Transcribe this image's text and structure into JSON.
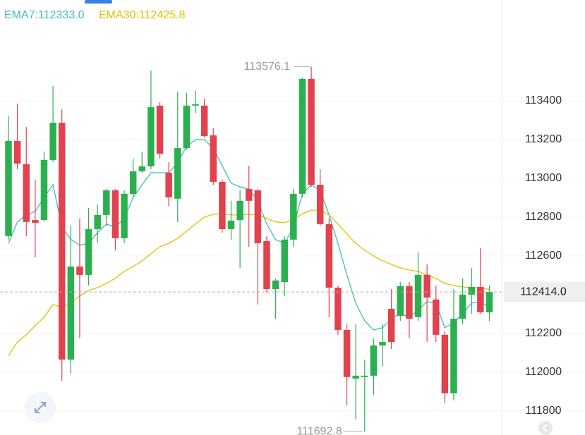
{
  "chart_data": {
    "type": "candlestick",
    "up_color": "#2bb04f",
    "down_color": "#e1424e",
    "ylim": [
      111676,
      113920
    ],
    "yticks": [
      111800,
      112000,
      112200,
      112400,
      112600,
      112800,
      113000,
      113200,
      113400
    ],
    "grid": true,
    "candles": {
      "open": [
        112702,
        113193,
        113073,
        112785,
        112785,
        113095,
        113287,
        112065,
        112545,
        112502,
        112738,
        112811,
        112938,
        112691,
        112920,
        113036,
        113062,
        113375,
        113029,
        112895,
        113156,
        113375,
        113375,
        113222,
        112982,
        112738,
        112785,
        112945,
        112938,
        112676,
        112429,
        112465,
        112684,
        112920,
        113513,
        112967,
        112764,
        112436,
        112218,
        111967,
        111975,
        111982,
        112138,
        112327,
        112291,
        112444,
        112284,
        112502,
        112375,
        112193,
        111891,
        112276,
        112400,
        112440,
        112309
      ],
      "high": [
        113320,
        113385,
        113265,
        112993,
        113138,
        113476,
        113356,
        112756,
        112793,
        112847,
        112865,
        112945,
        112945,
        112938,
        113102,
        113138,
        113556,
        113393,
        113084,
        113447,
        113440,
        113455,
        113411,
        113258,
        112993,
        112884,
        112938,
        113065,
        112945,
        112702,
        112484,
        112702,
        112945,
        113520,
        113576.1,
        113047,
        112793,
        112447,
        112247,
        112247,
        112065,
        112175,
        112247,
        112429,
        112465,
        112465,
        112618,
        112556,
        112447,
        112211,
        112429,
        112484,
        112538,
        112640,
        112447
      ],
      "low": [
        112684,
        113047,
        112702,
        112593,
        112775,
        113084,
        111956,
        111993,
        112175,
        112447,
        112665,
        112756,
        112629,
        112665,
        112902,
        113029,
        113047,
        113102,
        112855,
        112775,
        113149,
        113338,
        113211,
        112967,
        112720,
        112684,
        112538,
        112647,
        112349,
        112411,
        112276,
        112393,
        112647,
        112902,
        112956,
        112756,
        112284,
        112193,
        111829,
        111756,
        111692.8,
        111884,
        112029,
        112120,
        112265,
        112175,
        112265,
        112156,
        112156,
        111840,
        111855,
        112247,
        112302,
        112302,
        112265
      ],
      "close": [
        113193,
        113076,
        112775,
        112771,
        113095,
        113287,
        112065,
        112545,
        112502,
        112738,
        112811,
        112938,
        112691,
        112920,
        113036,
        113062,
        113367,
        113127,
        112902,
        113156,
        113375,
        113382,
        113218,
        112982,
        112738,
        112782,
        112884,
        112884,
        112665,
        112429,
        112473,
        112684,
        112920,
        113513,
        112967,
        112764,
        112436,
        112218,
        111975,
        111982,
        111982,
        112138,
        112156,
        112156,
        112444,
        112276,
        112502,
        112385,
        112193,
        111891,
        112276,
        112400,
        112440,
        112309,
        112414
      ]
    },
    "series": [
      {
        "name": "EMA7:112333.0",
        "color": "#3dbfb3",
        "values": [
          112665,
          112775,
          112811,
          112829,
          112902,
          112967,
          112749,
          112684,
          112655,
          112665,
          112720,
          112764,
          112749,
          112793,
          112902,
          112967,
          113029,
          113029,
          113029,
          113084,
          113164,
          113200,
          113200,
          113156,
          113065,
          112975,
          112956,
          112945,
          112884,
          112764,
          112684,
          112665,
          112749,
          112920,
          112967,
          112938,
          112811,
          112665,
          112502,
          112356,
          112265,
          112218,
          112229,
          112276,
          112302,
          112284,
          112320,
          112364,
          112356,
          112229,
          112255,
          112302,
          112356,
          112364,
          112333
        ]
      },
      {
        "name": "EMA30:112425.8",
        "color": "#e2c000",
        "values": [
          112084,
          112156,
          112193,
          112240,
          112284,
          112349,
          112335,
          112356,
          112393,
          112422,
          112436,
          112458,
          112484,
          112520,
          112545,
          112575,
          112611,
          112647,
          112665,
          112691,
          112727,
          112764,
          112800,
          112815,
          112818,
          112811,
          112811,
          112815,
          112811,
          112793,
          112775,
          112771,
          112785,
          112818,
          112836,
          112836,
          112811,
          112764,
          112713,
          112665,
          112629,
          112600,
          112575,
          112556,
          112538,
          112527,
          112520,
          112502,
          112484,
          112458,
          112447,
          112440,
          112436,
          112436,
          112425.8
        ]
      }
    ],
    "last_price": {
      "value": 112414,
      "label": "112414.0"
    },
    "high_marker": 113576.1,
    "low_marker": 111692.8
  }
}
